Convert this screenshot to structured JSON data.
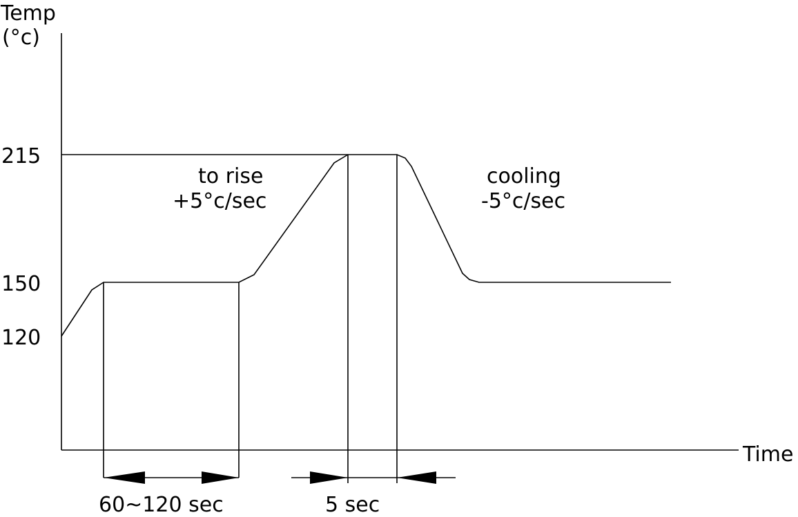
{
  "y_axis": {
    "label_line1": "Temp",
    "label_line2": "(°c)",
    "ticks": [
      "215",
      "150",
      "120"
    ]
  },
  "x_axis": {
    "label": "Time"
  },
  "annotations": {
    "rise_line1": "to rise",
    "rise_line2": "+5°c/sec",
    "cool_line1": "cooling",
    "cool_line2": "-5°c/sec"
  },
  "dimensions": {
    "soak": "60~120 sec",
    "peak": "5 sec"
  },
  "colors": {
    "line": "#000000",
    "background": "#ffffff"
  }
}
